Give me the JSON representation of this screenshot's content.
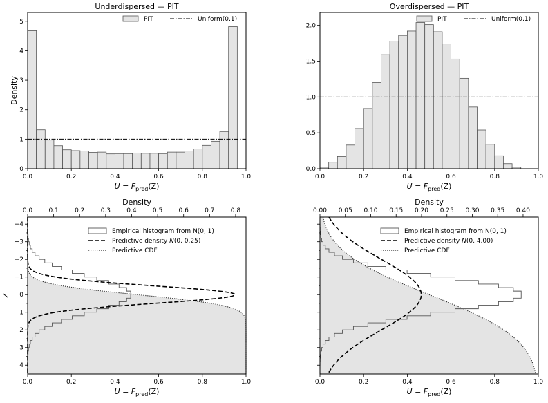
{
  "chart_data": [
    {
      "type": "bar",
      "title": "Underdispersed — PIT",
      "xlabel_main": "U = F",
      "xlabel_sub": "pred",
      "xlabel_tail": "(Z)",
      "ylabel": "Density",
      "xlim": [
        0,
        1
      ],
      "ylim": [
        0,
        5.3
      ],
      "xticks": [
        0,
        0.2,
        0.4,
        0.6,
        0.8,
        1
      ],
      "xtick_labels": [
        "0.0",
        "0.2",
        "0.4",
        "0.6",
        "0.8",
        "1.0"
      ],
      "yticks": [
        0,
        1,
        2,
        3,
        4,
        5
      ],
      "ytick_labels": [
        "0",
        "1",
        "2",
        "3",
        "4",
        "5"
      ],
      "bin_width": 0.04,
      "values": [
        4.68,
        1.32,
        0.97,
        0.78,
        0.64,
        0.61,
        0.6,
        0.55,
        0.56,
        0.5,
        0.51,
        0.51,
        0.53,
        0.52,
        0.52,
        0.51,
        0.56,
        0.56,
        0.6,
        0.67,
        0.79,
        0.93,
        1.26,
        4.82
      ],
      "reference_line": 1.0,
      "legend": [
        "PIT",
        "Uniform(0,1)"
      ]
    },
    {
      "type": "bar",
      "title": "Overdispersed — PIT",
      "xlabel_main": "U = F",
      "xlabel_sub": "pred",
      "xlabel_tail": "(Z)",
      "ylabel": "",
      "xlim": [
        0,
        1
      ],
      "ylim": [
        0,
        2.18
      ],
      "xticks": [
        0,
        0.2,
        0.4,
        0.6,
        0.8,
        1
      ],
      "xtick_labels": [
        "0.0",
        "0.2",
        "0.4",
        "0.6",
        "0.8",
        "1.0"
      ],
      "yticks": [
        0,
        0.5,
        1,
        1.5,
        2
      ],
      "ytick_labels": [
        "0.0",
        "0.5",
        "1.0",
        "1.5",
        "2.0"
      ],
      "bin_width": 0.04,
      "values": [
        0.02,
        0.09,
        0.17,
        0.33,
        0.56,
        0.84,
        1.2,
        1.59,
        1.78,
        1.86,
        1.92,
        2.04,
        2.01,
        1.91,
        1.74,
        1.53,
        1.26,
        0.86,
        0.54,
        0.34,
        0.18,
        0.07,
        0.02,
        0.0
      ],
      "reference_line": 1.0,
      "legend": [
        "PIT",
        "Uniform(0,1)"
      ]
    },
    {
      "type": "line",
      "top_label": "Density",
      "xlabel_main": "U = F",
      "xlabel_sub": "pred",
      "xlabel_tail": "(Z)",
      "ylabel": "Z",
      "xlim": [
        0,
        1
      ],
      "ylim_inverted": [
        -4.4,
        4.5
      ],
      "density_range": [
        0,
        0.84
      ],
      "xticks": [
        0,
        0.2,
        0.4,
        0.6,
        0.8,
        1
      ],
      "xtick_labels": [
        "0.0",
        "0.2",
        "0.4",
        "0.6",
        "0.8",
        "1.0"
      ],
      "top_ticks": [
        0,
        0.1,
        0.2,
        0.3,
        0.4,
        0.5,
        0.6,
        0.7,
        0.8
      ],
      "top_tick_labels": [
        "0.0",
        "0.1",
        "0.2",
        "0.3",
        "0.4",
        "0.5",
        "0.6",
        "0.7",
        "0.8"
      ],
      "yticks": [
        -4,
        -3,
        -2,
        -1,
        0,
        1,
        2,
        3,
        4
      ],
      "ytick_labels": [
        "−4",
        "−3",
        "−2",
        "−1",
        "0",
        "1",
        "2",
        "3",
        "4"
      ],
      "predictive_sigma": 0.5,
      "hist_bin_width": 0.2,
      "legend": [
        "Empirical histogram from N(0, 1)",
        "Predictive density N(0, 0.25)",
        "Predictive CDF"
      ],
      "legend_prefix": [
        "Empirical histogram from N(0, 1)",
        "Predictive density ",
        "Predictive CDF"
      ],
      "legend_italic": [
        "",
        "N",
        ""
      ],
      "legend_suffix": [
        "",
        "(0, 0.25)",
        ""
      ]
    },
    {
      "type": "line",
      "top_label": "Density",
      "xlabel_main": "U = F",
      "xlabel_sub": "pred",
      "xlabel_tail": "(Z)",
      "ylabel": "",
      "xlim": [
        0,
        1
      ],
      "ylim_inverted": [
        -4.4,
        4.5
      ],
      "density_range": [
        0,
        0.43
      ],
      "xticks": [
        0,
        0.2,
        0.4,
        0.6,
        0.8,
        1
      ],
      "xtick_labels": [
        "0.0",
        "0.2",
        "0.4",
        "0.6",
        "0.8",
        "1.0"
      ],
      "top_ticks": [
        0,
        0.05,
        0.1,
        0.15,
        0.2,
        0.25,
        0.3,
        0.35,
        0.4
      ],
      "top_tick_labels": [
        "0.00",
        "0.05",
        "0.10",
        "0.15",
        "0.20",
        "0.25",
        "0.30",
        "0.35",
        "0.40"
      ],
      "yticks": [
        -4,
        -3,
        -2,
        -1,
        0,
        1,
        2,
        3,
        4
      ],
      "predictive_sigma": 2.0,
      "hist_bin_width": 0.2,
      "legend": [
        "Empirical histogram from N(0, 1)",
        "Predictive density N(0, 4.00)",
        "Predictive CDF"
      ],
      "legend_prefix": [
        "Empirical histogram from N(0, 1)",
        "Predictive density ",
        "Predictive CDF"
      ],
      "legend_italic": [
        "",
        "N",
        ""
      ],
      "legend_suffix": [
        "",
        "(0, 4.00)",
        ""
      ]
    }
  ]
}
